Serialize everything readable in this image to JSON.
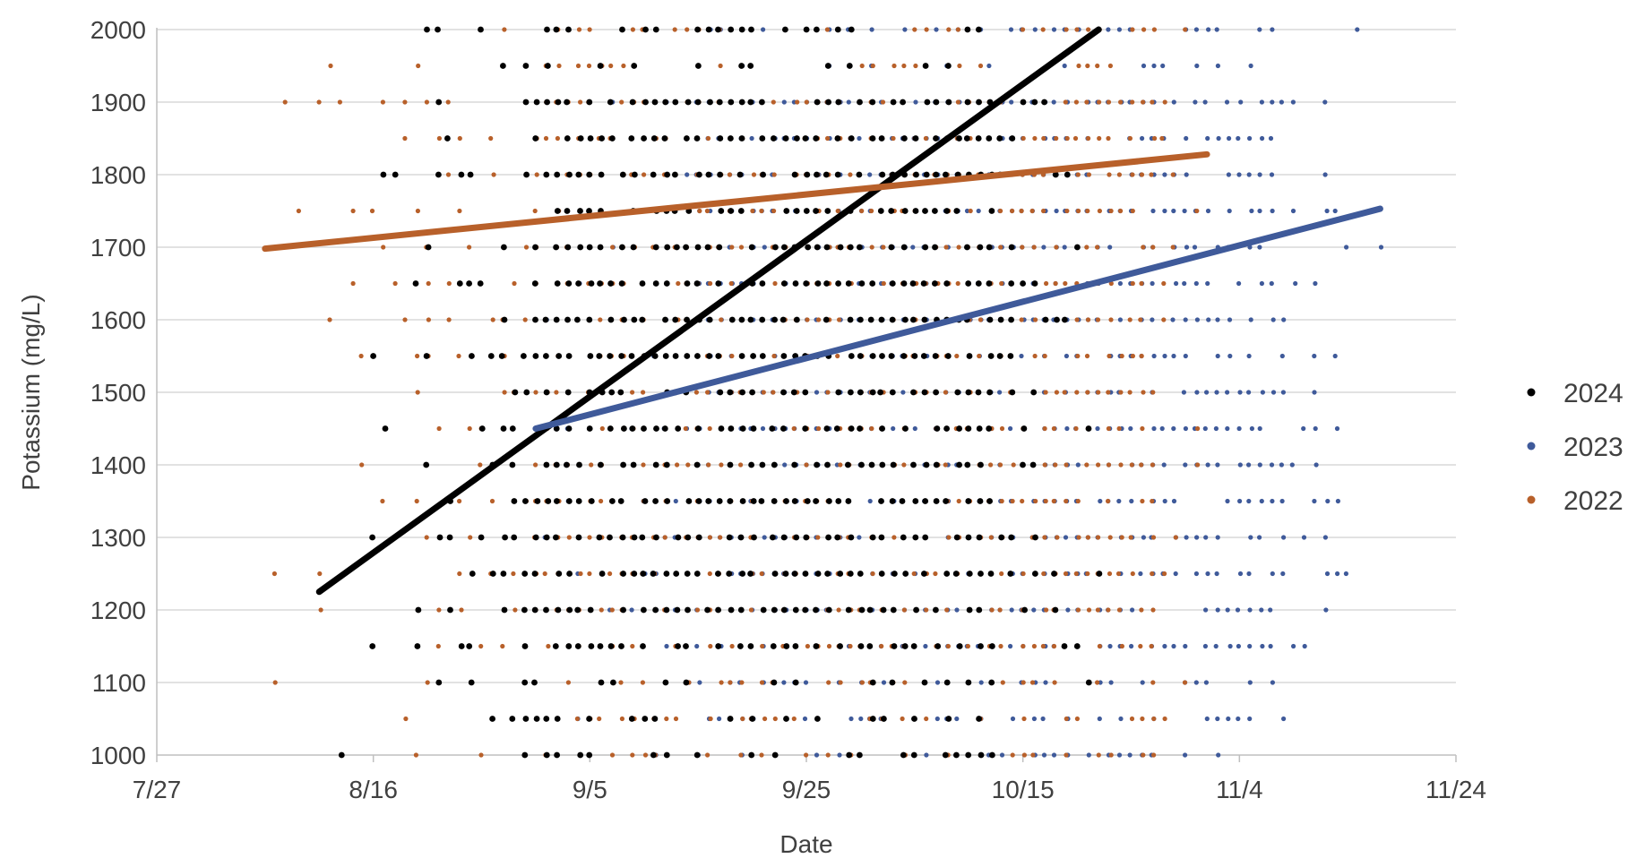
{
  "chart_data": {
    "type": "scatter",
    "title": "",
    "xlabel": "Date",
    "ylabel": "Potassium (mg/L)",
    "x_axis": {
      "type": "date",
      "ticks": [
        "7/27",
        "8/16",
        "9/5",
        "9/25",
        "10/15",
        "11/4",
        "11/24"
      ],
      "xlim": [
        "7/27",
        "11/24"
      ]
    },
    "y_axis": {
      "ticks": [
        1000,
        1100,
        1200,
        1300,
        1400,
        1500,
        1600,
        1700,
        1800,
        1900,
        2000
      ],
      "ylim": [
        1000,
        2000
      ]
    },
    "grid": "horizontal",
    "legend_position": "right",
    "colors": {
      "2024": "#000000",
      "2023": "#3f5a9a",
      "2022": "#b8602a"
    },
    "series": [
      {
        "name": "2024",
        "type": "scatter",
        "color": "#000000",
        "marker": "black-dot",
        "x_range": [
          "8/11",
          "10/22"
        ],
        "dense_x_range": [
          "8/31",
          "10/12"
        ],
        "y_levels": [
          1000,
          1050,
          1100,
          1150,
          1200,
          1250,
          1300,
          1350,
          1400,
          1450,
          1500,
          1550,
          1600,
          1650,
          1700,
          1750,
          1800,
          1850,
          1900,
          1950,
          2000
        ]
      },
      {
        "name": "2023",
        "type": "scatter",
        "color": "#3f5a9a",
        "marker": "blue-dot",
        "x_range": [
          "8/31",
          "11/17"
        ],
        "dense_x_range": [
          "9/15",
          "11/7"
        ],
        "y_levels": [
          1000,
          1050,
          1100,
          1150,
          1200,
          1250,
          1300,
          1350,
          1400,
          1450,
          1500,
          1550,
          1600,
          1650,
          1700,
          1750,
          1800,
          1850,
          1900,
          1950,
          2000
        ]
      },
      {
        "name": "2022",
        "type": "scatter",
        "color": "#b8602a",
        "marker": "orange-dot",
        "x_range": [
          "8/6",
          "11/1"
        ],
        "dense_x_range": [
          "8/31",
          "10/27"
        ],
        "y_levels": [
          1000,
          1050,
          1100,
          1150,
          1200,
          1250,
          1300,
          1350,
          1400,
          1450,
          1500,
          1550,
          1600,
          1650,
          1700,
          1750,
          1800,
          1850,
          1900,
          1950,
          2000
        ]
      }
    ],
    "trendlines": [
      {
        "series": "2024",
        "color": "#000000",
        "start": {
          "x": "8/11",
          "y": 1225
        },
        "end": {
          "x": "10/22",
          "y": 2000
        }
      },
      {
        "series": "2023",
        "color": "#3f5a9a",
        "start": {
          "x": "8/31",
          "y": 1450
        },
        "end": {
          "x": "11/17",
          "y": 1753
        }
      },
      {
        "series": "2022",
        "color": "#b8602a",
        "start": {
          "x": "8/6",
          "y": 1698
        },
        "end": {
          "x": "11/1",
          "y": 1828
        }
      }
    ],
    "legend": [
      {
        "label": "2024",
        "color": "#000000"
      },
      {
        "label": "2023",
        "color": "#3f5a9a"
      },
      {
        "label": "2022",
        "color": "#b8602a"
      }
    ]
  }
}
